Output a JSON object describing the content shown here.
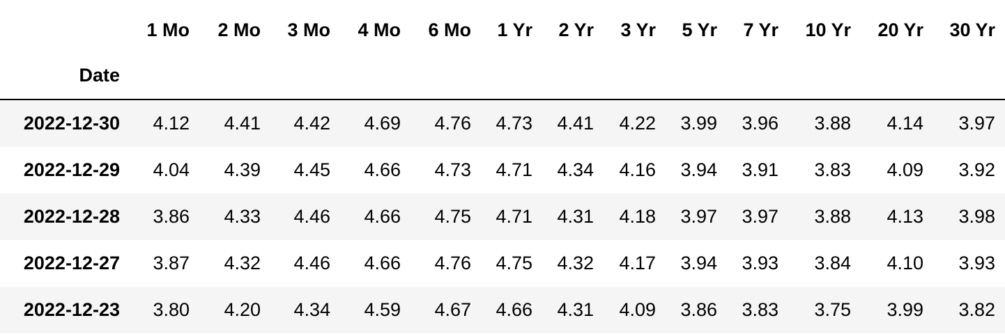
{
  "table": {
    "index_name": "Date",
    "columns": [
      "1 Mo",
      "2 Mo",
      "3 Mo",
      "4 Mo",
      "6 Mo",
      "1 Yr",
      "2 Yr",
      "3 Yr",
      "5 Yr",
      "7 Yr",
      "10 Yr",
      "20 Yr",
      "30 Yr"
    ],
    "rows": [
      {
        "date": "2022-12-30",
        "values": [
          "4.12",
          "4.41",
          "4.42",
          "4.69",
          "4.76",
          "4.73",
          "4.41",
          "4.22",
          "3.99",
          "3.96",
          "3.88",
          "4.14",
          "3.97"
        ]
      },
      {
        "date": "2022-12-29",
        "values": [
          "4.04",
          "4.39",
          "4.45",
          "4.66",
          "4.73",
          "4.71",
          "4.34",
          "4.16",
          "3.94",
          "3.91",
          "3.83",
          "4.09",
          "3.92"
        ]
      },
      {
        "date": "2022-12-28",
        "values": [
          "3.86",
          "4.33",
          "4.46",
          "4.66",
          "4.75",
          "4.71",
          "4.31",
          "4.18",
          "3.97",
          "3.97",
          "3.88",
          "4.13",
          "3.98"
        ]
      },
      {
        "date": "2022-12-27",
        "values": [
          "3.87",
          "4.32",
          "4.46",
          "4.66",
          "4.76",
          "4.75",
          "4.32",
          "4.17",
          "3.94",
          "3.93",
          "3.84",
          "4.10",
          "3.93"
        ]
      },
      {
        "date": "2022-12-23",
        "values": [
          "3.80",
          "4.20",
          "4.34",
          "4.59",
          "4.67",
          "4.66",
          "4.31",
          "4.09",
          "3.86",
          "3.83",
          "3.75",
          "3.99",
          "3.82"
        ]
      }
    ]
  }
}
